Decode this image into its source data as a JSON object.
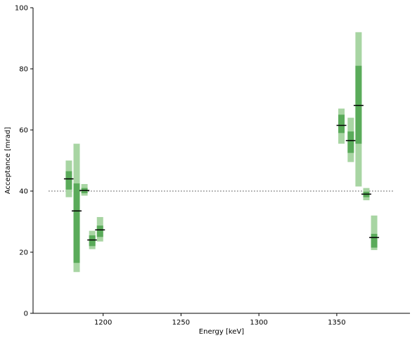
{
  "chart_data": {
    "type": "bar",
    "xlabel": "Energy [keV]",
    "ylabel": "Acceptance [mrad]",
    "xlim": [
      1155,
      1397
    ],
    "ylim": [
      0,
      100
    ],
    "xticks": [
      1200,
      1250,
      1300,
      1350
    ],
    "yticks": [
      0,
      20,
      40,
      60,
      80,
      100
    ],
    "grid": false,
    "reference_line": {
      "y": 40,
      "x": [
        1165,
        1387
      ],
      "style": "dotted",
      "color": "#808080"
    },
    "colors": {
      "outer_band": "#a8d5a3",
      "inner_band": "#5aab5a",
      "median": "#000000"
    },
    "points": [
      {
        "x": 1178,
        "median": 44,
        "inner": [
          40.5,
          46.5
        ],
        "outer": [
          38,
          50
        ]
      },
      {
        "x": 1183,
        "median": 33.5,
        "inner": [
          16.5,
          42.5
        ],
        "outer": [
          13.5,
          55.5
        ]
      },
      {
        "x": 1188,
        "median": 40.2,
        "inner": [
          39.3,
          41
        ],
        "outer": [
          38.5,
          42.3
        ]
      },
      {
        "x": 1193,
        "median": 24,
        "inner": [
          22,
          25.5
        ],
        "outer": [
          21,
          27
        ]
      },
      {
        "x": 1198,
        "median": 27.3,
        "inner": [
          25,
          28.7
        ],
        "outer": [
          23.5,
          31.5
        ]
      },
      {
        "x": 1353,
        "median": 61.5,
        "inner": [
          59,
          65
        ],
        "outer": [
          55.5,
          67
        ]
      },
      {
        "x": 1359,
        "median": 56.5,
        "inner": [
          52.5,
          59.5
        ],
        "outer": [
          49.5,
          64
        ]
      },
      {
        "x": 1364,
        "median": 68,
        "inner": [
          55.5,
          81
        ],
        "outer": [
          41.5,
          92
        ]
      },
      {
        "x": 1369,
        "median": 39,
        "inner": [
          38,
          39.8
        ],
        "outer": [
          37,
          41
        ]
      },
      {
        "x": 1374,
        "median": 24.8,
        "inner": [
          21.5,
          26
        ],
        "outer": [
          20.7,
          32
        ]
      }
    ]
  }
}
